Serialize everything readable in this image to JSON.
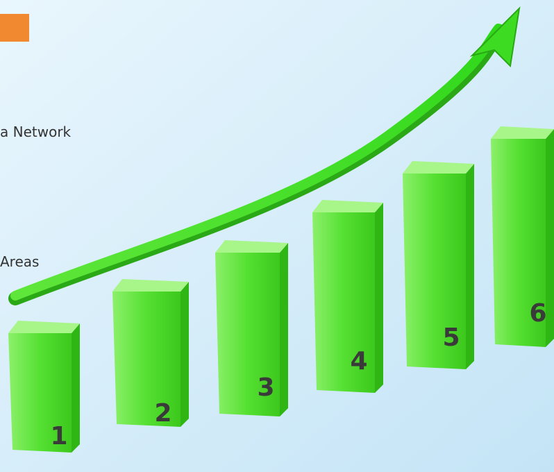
{
  "texts": [
    "a Network",
    "Areas"
  ],
  "bars": [
    {
      "label": "1"
    },
    {
      "label": "2"
    },
    {
      "label": "3"
    },
    {
      "label": "4"
    },
    {
      "label": "5"
    },
    {
      "label": "6"
    }
  ]
}
